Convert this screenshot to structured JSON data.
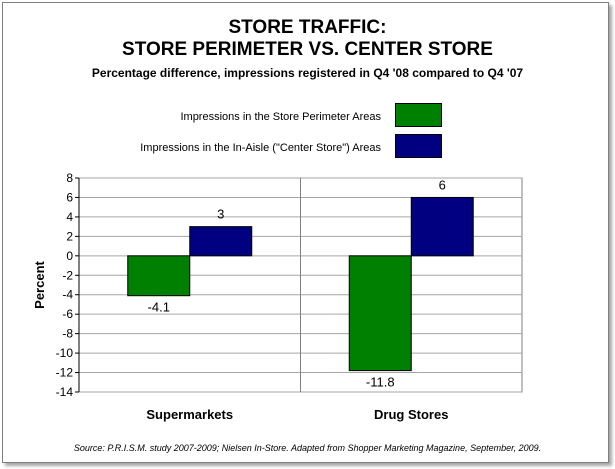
{
  "chart_data": {
    "type": "bar",
    "title": "STORE TRAFFIC:",
    "title_line2": "STORE PERIMETER VS. CENTER STORE",
    "subtitle": "Percentage difference, impressions registered in Q4 '08 compared to Q4 '07",
    "categories": [
      "Supermarkets",
      "Drug Stores"
    ],
    "series": [
      {
        "name": "Impressions in the Store Perimeter Areas",
        "color": "#008000",
        "values": [
          -4.1,
          -11.8
        ],
        "labels": [
          "-4.1",
          "-11.8"
        ]
      },
      {
        "name": "Impressions in the In-Aisle (\"Center Store\") Areas",
        "color": "#000080",
        "values": [
          3,
          6
        ],
        "labels": [
          "3",
          "6"
        ]
      }
    ],
    "ylabel": "Percent",
    "xlabel": "",
    "ylim": [
      -14,
      8
    ],
    "yticks": [
      8,
      6,
      4,
      2,
      0,
      -2,
      -4,
      -6,
      -8,
      -10,
      -12,
      -14
    ],
    "grid": "horizontal",
    "legend_placement": "top-center",
    "source": "Source: P.R.I.S.M. study 2007-2009; Nielsen In-Store. Adapted from Shopper Marketing Magazine, September, 2009."
  }
}
